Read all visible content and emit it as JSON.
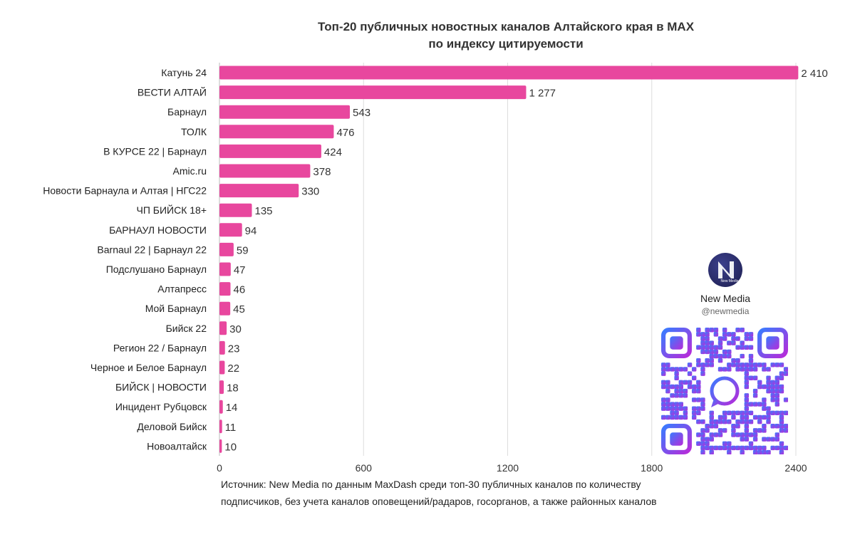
{
  "title_line1": "Топ-20 публичных новостных каналов Алтайского края в MAX",
  "title_line2": "по индексу цитируемости",
  "source_line1": "Источник: New Media по данным MaxDash среди топ-30 публичных каналов по количеству",
  "source_line2": "подписчиков, без учета каналов оповещений/радаров, госорганов, а также районных каналов",
  "brand": {
    "name": "New Media",
    "handle": "@newmedia",
    "logo_text": "New Media"
  },
  "colors": {
    "bar": "#e8479e",
    "grid": "#dddddd",
    "qr_start": "#3a7bff",
    "qr_end": "#b72bd9"
  },
  "chart_data": {
    "type": "bar",
    "orientation": "horizontal",
    "categories": [
      "Катунь 24",
      "ВЕСТИ АЛТАЙ",
      "Барнаул",
      "ТОЛК",
      "В КУРСЕ 22 | Барнаул",
      "Amic.ru",
      "Новости Барнаула и Алтая | НГС22",
      "ЧП БИЙСК 18+",
      "БАРНАУЛ НОВОСТИ",
      "Barnaul 22 | Барнаул 22",
      "Подслушано Барнаул",
      "Алтапресс",
      "Мой Барнаул",
      "Бийск 22",
      "Регион 22 / Барнаул",
      "Черное и Белое Барнаул",
      "БИЙСК | НОВОСТИ",
      "Инцидент Рубцовск",
      "Деловой Бийск",
      "Новоалтайск"
    ],
    "values": [
      2410,
      1277,
      543,
      476,
      424,
      378,
      330,
      135,
      94,
      59,
      47,
      46,
      45,
      30,
      23,
      22,
      18,
      14,
      11,
      10
    ],
    "value_labels": [
      "2 410",
      "1 277",
      "543",
      "476",
      "424",
      "378",
      "330",
      "135",
      "94",
      "59",
      "47",
      "46",
      "45",
      "30",
      "23",
      "22",
      "18",
      "14",
      "11",
      "10"
    ],
    "xlim": [
      0,
      2400
    ],
    "xticks": [
      0,
      600,
      1200,
      1800,
      2400
    ],
    "xtick_labels": [
      "0",
      "600",
      "1200",
      "1800",
      "2400"
    ],
    "grid": true,
    "legend": "none"
  }
}
